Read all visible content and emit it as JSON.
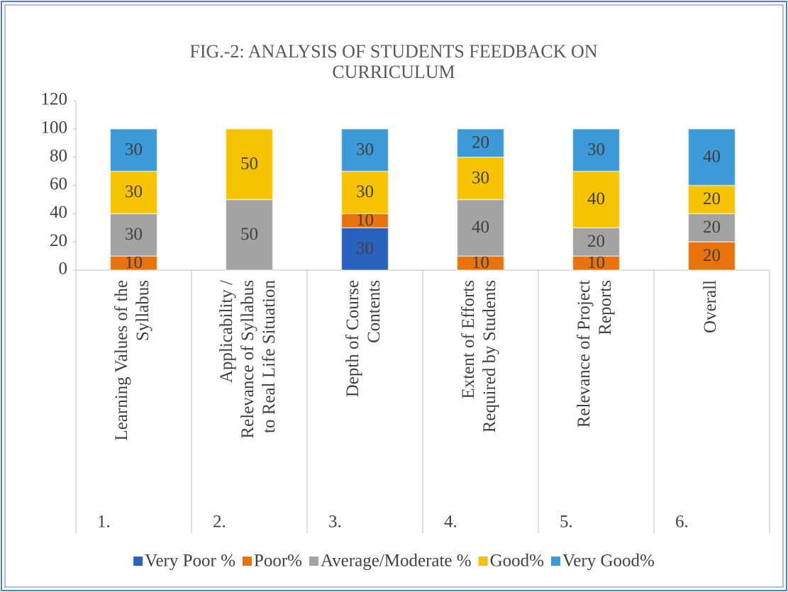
{
  "chart_data": {
    "type": "stacked_bar",
    "title": [
      "FIG.-2: ANALYSIS OF STUDENTS FEEDBACK ON",
      "CURRICULUM"
    ],
    "categories": [
      [
        "Learning Values of the",
        "Syllabus"
      ],
      [
        "Applicability /",
        "Relevance of Syllabus",
        "to Real Life Situation"
      ],
      [
        "Depth of Course",
        "Contents"
      ],
      [
        "Extent of Efforts",
        "Required by Students"
      ],
      [
        "Relevance of Project",
        "Reports"
      ],
      [
        "Overall"
      ]
    ],
    "category_numbers": [
      "1.",
      "2.",
      "3.",
      "4.",
      "5.",
      "6."
    ],
    "series": [
      {
        "name": "Very Poor %",
        "color": "#2a62c0",
        "values": [
          null,
          null,
          30,
          null,
          null,
          null
        ]
      },
      {
        "name": "Poor%",
        "color": "#e8720c",
        "values": [
          10,
          null,
          10,
          10,
          10,
          20
        ]
      },
      {
        "name": "Average/Moderate %",
        "color": "#a3a3a3",
        "values": [
          30,
          50,
          null,
          40,
          20,
          20
        ]
      },
      {
        "name": "Good%",
        "color": "#f7c300",
        "values": [
          30,
          50,
          30,
          30,
          40,
          20
        ]
      },
      {
        "name": "Very Good%",
        "color": "#3c9ad8",
        "values": [
          30,
          null,
          30,
          20,
          30,
          40
        ]
      }
    ],
    "ylim": [
      0,
      120
    ],
    "yticks": [
      0,
      20,
      40,
      60,
      80,
      100,
      120
    ],
    "grid": false,
    "legend": "bottom"
  }
}
